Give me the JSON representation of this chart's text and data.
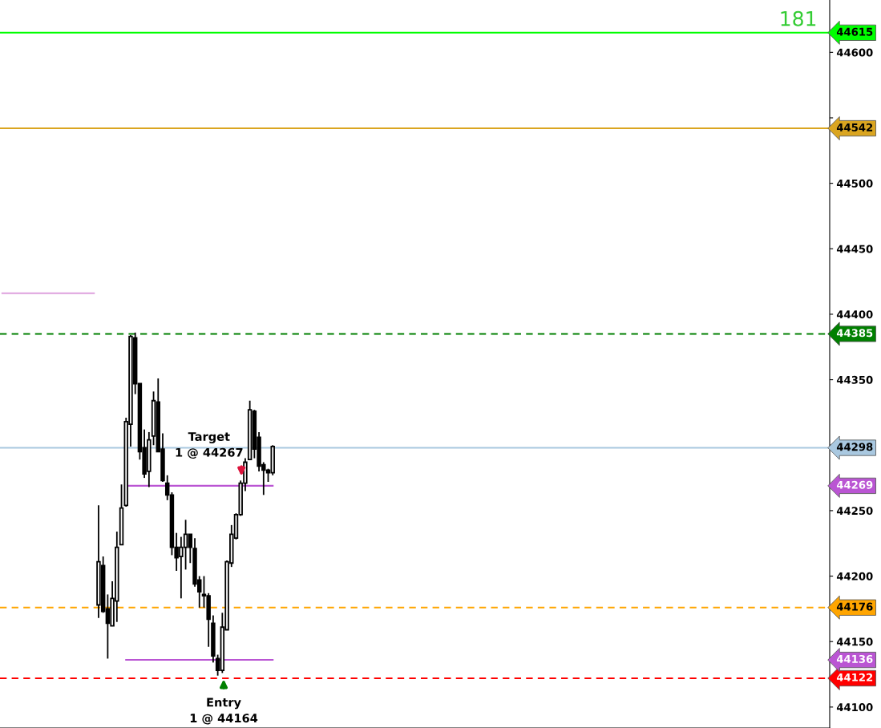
{
  "chart_data": {
    "type": "candlestick",
    "categories": [
      null,
      null,
      null,
      null,
      null,
      null,
      null,
      null,
      null,
      null,
      null,
      null,
      null,
      null,
      null,
      null,
      null,
      null,
      null,
      null,
      null,
      null,
      null,
      null,
      null,
      null,
      null,
      null,
      null,
      null,
      null,
      null,
      null,
      null,
      null,
      null,
      null,
      null,
      null,
      null,
      null,
      null,
      null,
      null,
      null,
      null,
      null,
      null,
      null,
      null,
      null,
      null,
      null,
      null,
      null,
      null,
      null,
      null,
      null,
      null,
      null,
      null,
      null,
      null,
      null,
      null,
      null,
      null,
      null,
      null,
      null,
      null,
      null,
      null,
      null,
      null,
      null,
      null,
      null,
      null,
      null,
      null,
      null,
      null,
      null,
      null,
      null,
      null,
      null,
      null,
      null,
      null,
      null,
      null,
      null,
      null,
      null,
      null,
      null,
      null,
      null,
      null,
      null,
      null,
      null,
      null,
      null,
      null,
      null,
      null,
      null,
      null,
      null,
      null,
      null,
      null,
      null,
      null,
      null,
      null,
      null,
      null,
      null,
      null,
      null,
      null,
      null,
      null,
      null,
      null,
      null,
      null,
      null,
      null,
      null,
      null,
      null,
      null,
      null,
      null,
      null,
      null,
      null,
      null,
      null,
      null,
      null,
      null,
      null,
      null,
      null,
      null,
      null,
      null,
      null,
      null,
      null,
      null,
      null,
      null,
      null,
      null,
      null,
      null,
      null,
      null,
      null,
      null,
      null,
      null,
      null,
      null,
      null,
      null,
      null,
      null,
      null,
      null,
      null,
      null,
      null
    ],
    "ohlc": [
      null,
      null,
      null,
      null,
      null,
      null,
      null,
      null,
      null,
      null,
      null,
      null,
      null,
      null,
      null,
      null,
      null,
      null,
      null,
      null,
      null,
      [
        44178,
        44254,
        44168,
        44211
      ],
      [
        44208,
        44215,
        44172,
        44173
      ],
      [
        44175,
        44186,
        44137,
        44164
      ],
      [
        44162,
        44196,
        44162,
        44183
      ],
      [
        44181,
        44234,
        44165,
        44222
      ],
      [
        44224,
        44270,
        44224,
        44252
      ],
      [
        44254,
        44321,
        44253,
        44318
      ],
      [
        44316,
        44384,
        44299,
        44383
      ],
      [
        44382,
        44386,
        44339,
        44347
      ],
      [
        44347,
        44347,
        44289,
        44295
      ],
      [
        44298,
        44312,
        44275,
        44278
      ],
      [
        44280,
        44310,
        44268,
        44304
      ],
      [
        44307,
        44341,
        44300,
        44334
      ],
      [
        44333,
        44351,
        44295,
        44295
      ],
      [
        44297,
        44309,
        44272,
        44273
      ],
      [
        44271,
        44277,
        44258,
        44262
      ],
      [
        44262,
        44264,
        44216,
        44222
      ],
      [
        44222,
        44233,
        44204,
        44214
      ],
      [
        44215,
        44230,
        44183,
        44222
      ],
      [
        44222,
        44243,
        44205,
        44232
      ],
      [
        44232,
        44232,
        44210,
        44222
      ],
      [
        44221,
        44229,
        44192,
        44194
      ],
      [
        44197,
        44200,
        44176,
        44188
      ],
      [
        44186,
        44200,
        44176,
        44185
      ],
      [
        44185,
        44187,
        44146,
        44167
      ],
      [
        44164,
        44170,
        44134,
        44139
      ],
      [
        44137,
        44140,
        44124,
        44128
      ],
      [
        44128,
        44172,
        44126,
        44161
      ],
      [
        44159,
        44212,
        44159,
        44211
      ],
      [
        44210,
        44239,
        44207,
        44232
      ],
      [
        44229,
        44248,
        44228,
        44247
      ],
      [
        44247,
        44273,
        44246,
        44271
      ],
      [
        44271,
        44290,
        44265,
        44287
      ],
      [
        44289,
        44334,
        44289,
        44327
      ],
      [
        44326,
        44327,
        44290,
        44297
      ],
      [
        44306,
        44310,
        44280,
        44284
      ],
      [
        44285,
        44287,
        44262,
        44281
      ],
      [
        44281,
        44282,
        44272,
        44279
      ],
      [
        44279,
        44300,
        44277,
        44299
      ],
      null,
      null,
      null,
      null,
      null,
      null,
      null,
      null,
      null,
      null,
      null,
      null,
      null,
      null,
      null,
      null,
      null,
      null,
      null,
      null,
      null,
      null,
      null,
      null,
      null,
      null,
      null,
      null,
      null,
      null,
      null,
      null,
      null,
      null,
      null,
      null,
      null,
      null,
      null,
      null,
      null,
      null,
      null,
      null,
      null,
      null,
      null,
      null,
      null,
      null,
      null,
      null,
      null,
      null,
      null,
      null,
      null,
      null,
      null,
      null,
      null,
      null,
      null,
      null,
      null,
      null,
      null,
      null,
      null,
      null,
      null,
      null,
      null,
      null,
      null,
      null,
      null,
      null,
      null,
      null,
      null,
      null,
      null,
      null,
      null,
      null,
      null,
      null,
      null,
      null,
      null,
      null,
      null,
      null,
      null,
      null,
      null,
      null,
      null,
      null,
      null,
      null,
      null,
      null,
      null,
      null,
      null,
      null,
      null,
      null,
      null,
      null,
      null,
      null,
      null,
      null,
      null,
      null,
      null,
      null,
      null
    ],
    "series": [
      {
        "type": "line",
        "color": "#dda0dd",
        "values": [
          44416,
          44416,
          44416,
          44416,
          44416,
          44416,
          44416,
          44416,
          44416,
          44416,
          44416,
          44416,
          44416,
          44416,
          44416,
          44416,
          44416,
          44416,
          44416,
          44416,
          44416,
          null,
          null,
          null,
          null,
          null,
          null,
          null,
          null,
          null,
          null,
          null,
          null,
          null,
          null,
          null,
          null,
          null,
          null,
          null,
          null,
          null,
          null,
          null,
          null,
          null,
          null,
          null,
          null,
          null,
          null,
          null,
          null,
          null,
          null,
          null,
          null,
          null,
          null,
          null,
          null,
          null,
          null,
          null,
          null,
          null,
          null,
          null,
          null,
          null,
          null,
          null,
          null,
          null,
          null,
          null,
          null,
          null,
          null,
          null,
          null,
          null,
          null,
          null,
          null,
          null,
          null,
          null,
          null,
          null,
          null,
          null,
          null,
          null,
          null,
          null,
          null,
          null,
          null,
          null,
          null,
          null,
          null,
          null,
          null,
          null,
          null,
          null,
          null,
          null,
          null,
          null,
          null,
          null,
          null,
          null,
          null,
          null,
          null,
          null,
          null,
          null,
          null,
          null,
          null,
          null,
          null,
          null,
          null,
          null,
          null,
          null,
          null,
          null,
          null,
          null,
          null,
          null,
          null,
          null,
          null,
          null,
          null,
          null,
          null,
          null,
          null,
          null,
          null,
          null,
          null,
          null,
          null,
          null,
          null,
          null,
          null,
          null,
          null,
          null,
          null,
          null,
          null,
          null,
          null,
          null,
          null,
          null,
          null,
          null,
          null,
          null,
          null,
          null,
          null,
          null,
          null,
          null,
          null,
          null,
          null
        ]
      },
      {
        "type": "line",
        "color": "#ba55d3",
        "values": [
          null,
          null,
          null,
          null,
          null,
          null,
          null,
          null,
          null,
          null,
          null,
          null,
          null,
          null,
          null,
          null,
          null,
          null,
          null,
          null,
          null,
          null,
          null,
          null,
          null,
          null,
          null,
          44269,
          44269,
          44269,
          44269,
          44269,
          44269,
          44269,
          44269,
          44269,
          44269,
          44269,
          44269,
          44269,
          44269,
          44269,
          44269,
          44269,
          44269,
          44269,
          44269,
          44269,
          44269,
          44269,
          44269,
          44269,
          44269,
          44269,
          44269,
          44269,
          44269,
          44269,
          44269,
          44269,
          null,
          null,
          null,
          null,
          null,
          null,
          null,
          null,
          null,
          null,
          null,
          null,
          null,
          null,
          null,
          null,
          null,
          null,
          null,
          null,
          null,
          null,
          null,
          null,
          null,
          null,
          null,
          null,
          null,
          null,
          null,
          null,
          null,
          null,
          null,
          null,
          null,
          null,
          null,
          null,
          null,
          null,
          null,
          null,
          null,
          null,
          null,
          null,
          null,
          null,
          null,
          null,
          null,
          null,
          null,
          null,
          null,
          null,
          null,
          null,
          null,
          null,
          null,
          null,
          null,
          null,
          null,
          null,
          null,
          null,
          null,
          null,
          null,
          null,
          null,
          null,
          null,
          null,
          null,
          null,
          null,
          null,
          null,
          null,
          null,
          null,
          null,
          null,
          null,
          null,
          null,
          null,
          null,
          null,
          null,
          null,
          null,
          null,
          null,
          null,
          null,
          null,
          null,
          null,
          null,
          null,
          null,
          null,
          null,
          null,
          null,
          null,
          null,
          null,
          null,
          null,
          null,
          null,
          null,
          null,
          null
        ]
      },
      {
        "type": "line",
        "color": "#ba55d3",
        "values": [
          null,
          null,
          null,
          null,
          null,
          null,
          null,
          null,
          null,
          null,
          null,
          null,
          null,
          null,
          null,
          null,
          null,
          null,
          null,
          null,
          null,
          null,
          null,
          null,
          null,
          null,
          null,
          44136,
          44136,
          44136,
          44136,
          44136,
          44136,
          44136,
          44136,
          44136,
          44136,
          44136,
          44136,
          44136,
          44136,
          44136,
          44136,
          44136,
          44136,
          44136,
          44136,
          44136,
          44136,
          44136,
          44136,
          44136,
          44136,
          44136,
          44136,
          44136,
          44136,
          44136,
          44136,
          44136,
          null,
          null,
          null,
          null,
          null,
          null,
          null,
          null,
          null,
          null,
          null,
          null,
          null,
          null,
          null,
          null,
          null,
          null,
          null,
          null,
          null,
          null,
          null,
          null,
          null,
          null,
          null,
          null,
          null,
          null,
          null,
          null,
          null,
          null,
          null,
          null,
          null,
          null,
          null,
          null,
          null,
          null,
          null,
          null,
          null,
          null,
          null,
          null,
          null,
          null,
          null,
          null,
          null,
          null,
          null,
          null,
          null,
          null,
          null,
          null,
          null,
          null,
          null,
          null,
          null,
          null,
          null,
          null,
          null,
          null,
          null,
          null,
          null,
          null,
          null,
          null,
          null,
          null,
          null,
          null,
          null,
          null,
          null,
          null,
          null,
          null,
          null,
          null,
          null,
          null,
          null,
          null,
          null,
          null,
          null,
          null,
          null,
          null,
          null,
          null,
          null,
          null,
          null,
          null,
          null,
          null,
          null,
          null,
          null,
          null,
          null,
          null,
          null,
          null,
          null,
          null,
          null,
          null,
          null,
          null,
          null
        ]
      }
    ],
    "ylim": [
      44084,
      44640
    ],
    "yticks": [
      44100,
      44150,
      44200,
      44250,
      {
        "value": 44300,
        "label": null
      },
      44350,
      44400,
      44450,
      44500,
      {
        "value": 44550,
        "label": null
      },
      44600
    ],
    "tick_labels": "y",
    "grid": false,
    "ref_lines": [
      {
        "axis": "y",
        "value": 44615,
        "label": "44615",
        "color": "#00ff00",
        "line_style": "solid"
      },
      {
        "axis": "y",
        "value": 44542,
        "label": "44542",
        "color": "#daa520",
        "line_style": "solid"
      },
      {
        "axis": "y",
        "value": 44385,
        "label": "44385",
        "color": "#008000",
        "line_style": "dashed"
      },
      {
        "axis": "y",
        "value": 44298,
        "label": "44298",
        "color": "#a9c8e0",
        "line_style": "solid"
      },
      {
        "axis": "y",
        "value": 44176,
        "label": "44176",
        "color": "#ffa500",
        "line_style": "dashed"
      },
      {
        "axis": "y",
        "value": 44122,
        "label": "44122",
        "color": "#ff0000",
        "line_style": "dashed"
      }
    ],
    "annotations": [
      "181",
      "Target\n1 @ 44267",
      "Entry\n1 @ 44164",
      "44269",
      "44136"
    ]
  }
}
